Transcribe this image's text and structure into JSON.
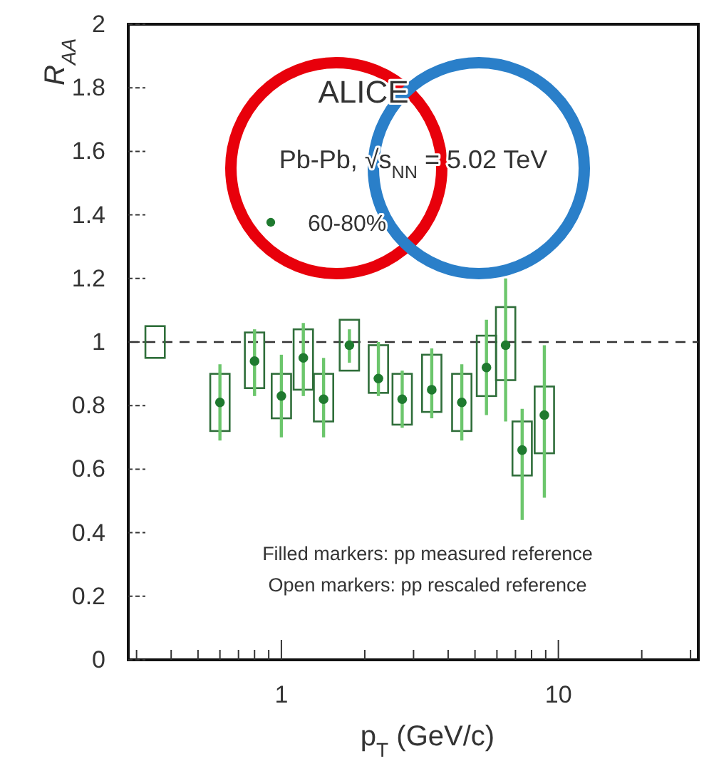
{
  "chart_data": {
    "type": "scatter",
    "title": "ALICE",
    "xlabel": "p$_{T}$ (GeV/c)",
    "ylabel": "R$_{AA}$",
    "log": "x",
    "xlim": [
      0.28,
      32
    ],
    "ylim": [
      0,
      2
    ],
    "xticks": [
      {
        "value": 0.3,
        "label": null
      },
      {
        "value": 0.4,
        "label": null
      },
      {
        "value": 0.5,
        "label": null
      },
      {
        "value": 0.6,
        "label": null
      },
      {
        "value": 0.7,
        "label": null
      },
      {
        "value": 0.8,
        "label": null
      },
      {
        "value": 0.9,
        "label": null
      },
      1,
      {
        "value": 2,
        "label": null
      },
      {
        "value": 3,
        "label": null
      },
      {
        "value": 4,
        "label": null
      },
      {
        "value": 5,
        "label": null
      },
      {
        "value": 6,
        "label": null
      },
      {
        "value": 7,
        "label": null
      },
      {
        "value": 8,
        "label": null
      },
      {
        "value": 9,
        "label": null
      },
      10,
      {
        "value": 20,
        "label": null
      },
      {
        "value": 30,
        "label": null
      }
    ],
    "yticks": [
      0,
      0.2,
      0.4,
      0.6,
      0.8,
      1,
      1.2,
      1.4,
      1.6,
      1.8,
      2
    ],
    "legend": "top left",
    "marker": "circle",
    "series": [
      {
        "type": "bar",
        "color": "#2f6e3a",
        "x": [
          0.35,
          0.6,
          0.8,
          1.0,
          1.2,
          1.42,
          1.76,
          2.24,
          2.73,
          3.49,
          4.48,
          5.5,
          6.45,
          7.4,
          8.9
        ],
        "base": [
          0.95,
          0.72,
          0.855,
          0.76,
          0.85,
          0.75,
          0.91,
          0.84,
          0.74,
          0.78,
          0.72,
          0.83,
          0.88,
          0.58,
          0.65
        ],
        "values": [
          0.1,
          0.18,
          0.175,
          0.14,
          0.19,
          0.15,
          0.16,
          0.15,
          0.16,
          0.18,
          0.18,
          0.19,
          0.23,
          0.17,
          0.21
        ]
      },
      {
        "name": "60-80%",
        "color": "#1f7a2f",
        "x": [
          0.6,
          0.8,
          1.0,
          1.2,
          1.42,
          1.76,
          2.24,
          2.73,
          3.49,
          4.48,
          5.5,
          6.45,
          7.4,
          8.9
        ],
        "values": [
          0.81,
          0.94,
          0.83,
          0.95,
          0.82,
          0.99,
          0.885,
          0.82,
          0.85,
          0.81,
          0.92,
          0.99,
          0.66,
          0.77
        ],
        "errors": [
          [
            0.69,
            0.93
          ],
          [
            0.83,
            1.04
          ],
          [
            0.7,
            0.96
          ],
          [
            0.83,
            1.06
          ],
          [
            0.7,
            0.95
          ],
          [
            0.935,
            1.04
          ],
          [
            0.83,
            1.0
          ],
          [
            0.73,
            0.91
          ],
          [
            0.76,
            0.98
          ],
          [
            0.69,
            0.93
          ],
          [
            0.77,
            1.07
          ],
          [
            0.75,
            1.2
          ],
          [
            0.44,
            0.79
          ],
          [
            0.51,
            0.99
          ]
        ]
      }
    ],
    "ref_lines": [
      {
        "axis": "y",
        "value": 1,
        "color": "#333333",
        "line_style": "dashed"
      }
    ],
    "annotations": [
      "Pb-Pb, √s$_{NN}$ = 5.02 TeV",
      "Filled markers: pp measured reference",
      "Open markers: pp rescaled reference"
    ]
  }
}
